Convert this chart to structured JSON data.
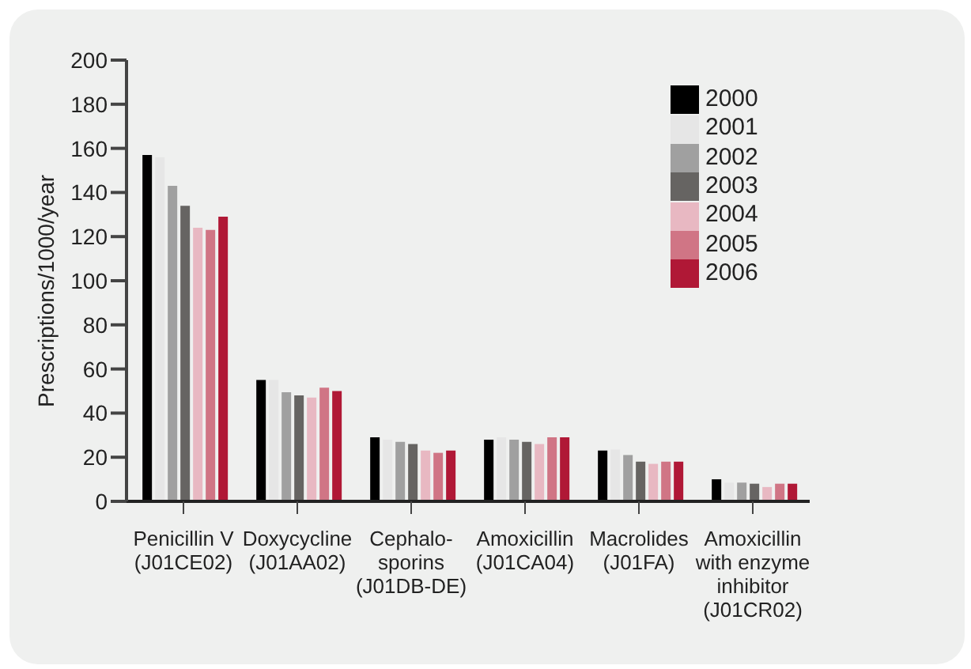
{
  "chart_data": {
    "type": "bar",
    "ylabel": "Prescriptions/1000/year",
    "categories": [
      "Penicillin V\n(J01CE02)",
      "Doxycycline\n(J01AA02)",
      "Cephalo-\nsporins\n(J01DB-DE)",
      "Amoxicillin\n(J01CA04)",
      "Macrolides\n(J01FA)",
      "Amoxicillin\nwith enzyme\ninhibitor\n(J01CR02)"
    ],
    "series": [
      {
        "name": "2000",
        "color": "#000000",
        "values": [
          157,
          55,
          29,
          28,
          23,
          10
        ]
      },
      {
        "name": "2001",
        "color": "#e6e6e6",
        "values": [
          156,
          55,
          28,
          29,
          23.5,
          8.5
        ]
      },
      {
        "name": "2002",
        "color": "#a0a0a0",
        "values": [
          143,
          49.5,
          27,
          28,
          21,
          8.5
        ]
      },
      {
        "name": "2003",
        "color": "#666462",
        "values": [
          134,
          48,
          26,
          27,
          18,
          8
        ]
      },
      {
        "name": "2004",
        "color": "#e8b8c2",
        "values": [
          124,
          47,
          23,
          26,
          17,
          6.5
        ]
      },
      {
        "name": "2005",
        "color": "#d07585",
        "values": [
          123,
          51.5,
          22,
          29,
          18,
          8
        ]
      },
      {
        "name": "2006",
        "color": "#b01836",
        "values": [
          129,
          50,
          23,
          29,
          18,
          8
        ]
      }
    ],
    "ylim": [
      0,
      200
    ],
    "yticks": [
      0,
      20,
      40,
      60,
      80,
      100,
      120,
      140,
      160,
      180,
      200
    ],
    "grid": false,
    "legend": "top right"
  }
}
